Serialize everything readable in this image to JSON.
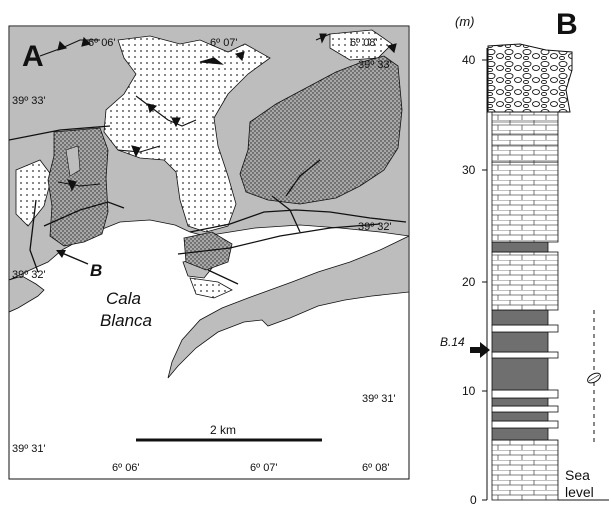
{
  "panel_a": {
    "label": "A",
    "coords_top": [
      "6º 06'",
      "6º 07'",
      "6º 08'"
    ],
    "coords_bottom": [
      "6º 06'",
      "6º 07'",
      "6º 08'"
    ],
    "coords_right": [
      "39º 33'",
      "39º 32'",
      "39º 31'"
    ],
    "coords_left": [
      "39º 33'",
      "39º 32'",
      "39º 31'"
    ],
    "place_name_line1": "Cala",
    "place_name_line2": "Blanca",
    "site_marker": "B",
    "scale_label": "2 km"
  },
  "panel_b": {
    "label": "B",
    "unit": "(m)",
    "ticks": [
      "0",
      "10",
      "20",
      "30",
      "40"
    ],
    "sample_label": "B.14",
    "sea_level_line1": "Sea",
    "sea_level_line2": "level"
  },
  "colors": {
    "land_gray": "#bdbdbd",
    "dark_bed": "#6f6f6f",
    "outline": "#111111"
  }
}
